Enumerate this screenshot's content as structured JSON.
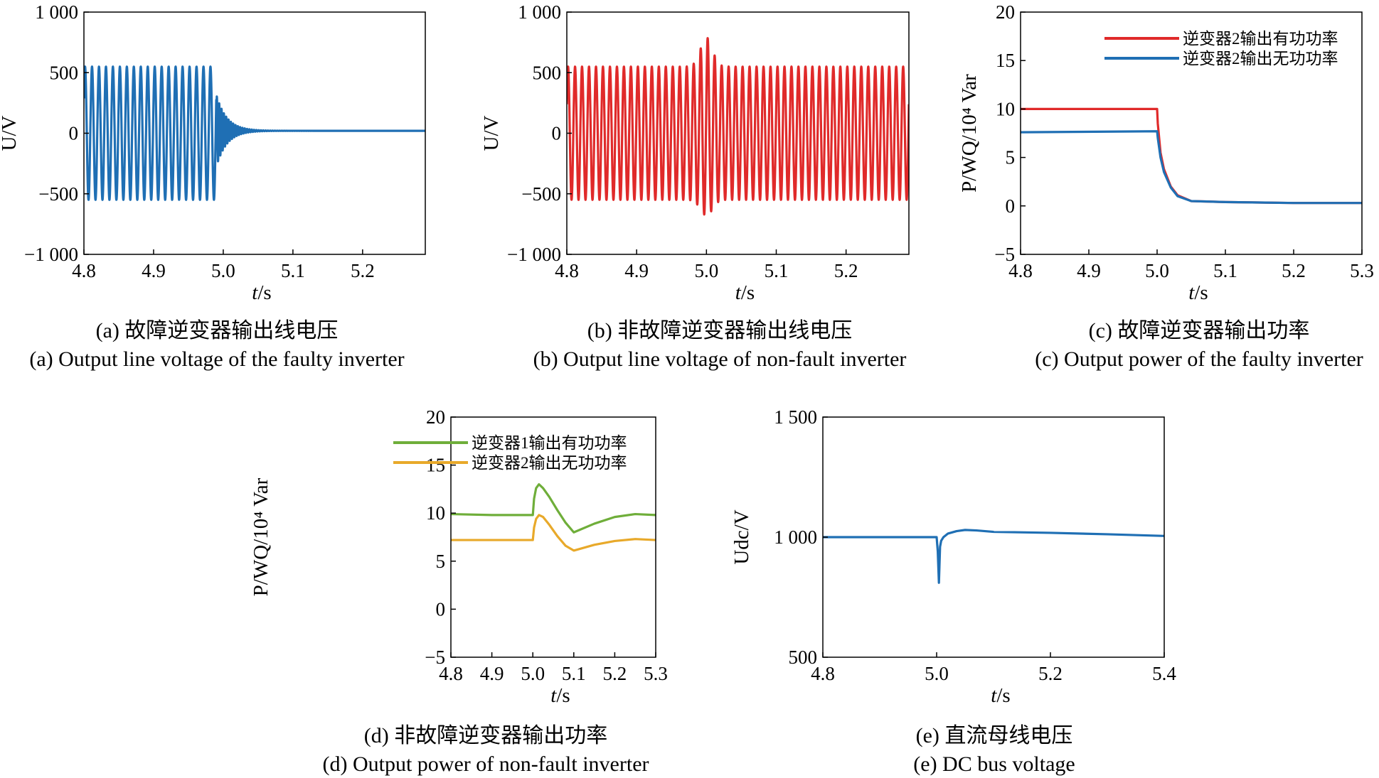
{
  "figure": {
    "panels": [
      {
        "id": "a",
        "caption_cn": "(a) 故障逆变器输出线电压",
        "caption_en": "(a) Output line voltage of the faulty inverter"
      },
      {
        "id": "b",
        "caption_cn": "(b) 非故障逆变器输出线电压",
        "caption_en": "(b) Output line voltage of non-fault inverter"
      },
      {
        "id": "c",
        "caption_cn": "(c) 故障逆变器输出功率",
        "caption_en": "(c) Output power of the faulty inverter"
      },
      {
        "id": "d",
        "caption_cn": "(d) 非故障逆变器输出功率",
        "caption_en": "(d) Output power of non-fault inverter"
      },
      {
        "id": "e",
        "caption_cn": "(e) 直流母线电压",
        "caption_en": "(e) DC bus voltage"
      }
    ]
  },
  "chart_data": [
    {
      "panel": "a",
      "type": "line",
      "xlabel_italic": "t",
      "xlabel_rest": "/s",
      "ylabel": "U/V",
      "xlim": [
        4.8,
        5.29
      ],
      "ylim": [
        -1000,
        1000
      ],
      "xticks": [
        4.8,
        4.9,
        5.0,
        5.1,
        5.2
      ],
      "xtick_labels": [
        "4.8",
        "4.9",
        "5.0",
        "5.1",
        "5.2"
      ],
      "yticks": [
        1000,
        500,
        0,
        -500,
        -1000
      ],
      "ytick_labels": [
        "1 000",
        "500",
        "0",
        "−500",
        "−1 000"
      ],
      "series": [
        {
          "color": "#1f6fb4",
          "signal": {
            "kind": "sine_fault_decay",
            "t_start": 4.8,
            "t_end": 5.29,
            "amplitude": 550,
            "frequency_hz": 100,
            "fault_time": 4.99,
            "after_fault_amplitude": 300,
            "decay_time_constant": 0.015,
            "after_fault_frequency_hz": 300,
            "steady_value": 20
          }
        }
      ]
    },
    {
      "panel": "b",
      "type": "line",
      "xlabel_italic": "t",
      "xlabel_rest": "/s",
      "ylabel": "U/V",
      "xlim": [
        4.8,
        5.29
      ],
      "ylim": [
        -1000,
        1000
      ],
      "xticks": [
        4.8,
        4.9,
        5.0,
        5.1,
        5.2
      ],
      "xtick_labels": [
        "4.8",
        "4.9",
        "5.0",
        "5.1",
        "5.2"
      ],
      "yticks": [
        1000,
        500,
        0,
        -500,
        -1000
      ],
      "ytick_labels": [
        "1 000",
        "500",
        "0",
        "−500",
        "−1 000"
      ],
      "series": [
        {
          "color": "#e02a2a",
          "signal": {
            "kind": "sine_with_spike",
            "t_start": 4.8,
            "t_end": 5.29,
            "amplitude": 550,
            "frequency_hz": 100,
            "spike_time": 5.0,
            "spike_peak": 790,
            "spike_trough": -680
          }
        }
      ]
    },
    {
      "panel": "c",
      "type": "line",
      "xlabel_italic": "t",
      "xlabel_rest": "/s",
      "ylabel": "P/WQ/10⁴ Var",
      "xlim": [
        4.8,
        5.3
      ],
      "ylim": [
        -5,
        20
      ],
      "xticks": [
        4.8,
        4.9,
        5.0,
        5.1,
        5.2,
        5.3
      ],
      "xtick_labels": [
        "4.8",
        "4.9",
        "5.0",
        "5.1",
        "5.2",
        "5.3"
      ],
      "yticks": [
        20,
        15,
        10,
        5,
        0,
        -5
      ],
      "ytick_labels": [
        "20",
        "15",
        "10",
        "5",
        "0",
        "−5"
      ],
      "legend": [
        "逆变器2输出有功功率",
        "逆变器2输出无功功率"
      ],
      "series": [
        {
          "name": "逆变器2输出有功功率",
          "color": "#e02a2a",
          "x": [
            4.8,
            5.0,
            5.001,
            5.005,
            5.01,
            5.02,
            5.03,
            5.05,
            5.1,
            5.2,
            5.3
          ],
          "y": [
            10.0,
            10.0,
            8.5,
            5.5,
            3.8,
            2.0,
            1.1,
            0.5,
            0.4,
            0.3,
            0.3
          ]
        },
        {
          "name": "逆变器2输出无功功率",
          "color": "#1f6fb4",
          "x": [
            4.8,
            5.0,
            5.001,
            5.005,
            5.01,
            5.02,
            5.03,
            5.05,
            5.1,
            5.2,
            5.3
          ],
          "y": [
            7.6,
            7.7,
            7.0,
            5.0,
            3.5,
            1.9,
            1.0,
            0.5,
            0.4,
            0.3,
            0.3
          ]
        }
      ]
    },
    {
      "panel": "d",
      "type": "line",
      "xlabel_italic": "t",
      "xlabel_rest": "/s",
      "ylabel": "P/WQ/10⁴ Var",
      "xlim": [
        4.8,
        5.3
      ],
      "ylim": [
        -5,
        20
      ],
      "xticks": [
        4.8,
        4.9,
        5.0,
        5.1,
        5.2,
        5.3
      ],
      "xtick_labels": [
        "4.8",
        "4.9",
        "5.0",
        "5.1",
        "5.2",
        "5.3"
      ],
      "yticks": [
        20,
        15,
        10,
        5,
        0,
        -5
      ],
      "ytick_labels": [
        "20",
        "15",
        "10",
        "5",
        "0",
        "−5"
      ],
      "legend": [
        "逆变器1输出有功功率",
        "逆变器2输出无功功率"
      ],
      "series": [
        {
          "name": "逆变器1输出有功功率",
          "color": "#6fae3a",
          "x": [
            4.8,
            4.9,
            5.0,
            5.003,
            5.008,
            5.015,
            5.025,
            5.04,
            5.06,
            5.08,
            5.1,
            5.15,
            5.2,
            5.25,
            5.3
          ],
          "y": [
            9.9,
            9.8,
            9.8,
            11.5,
            12.6,
            13.0,
            12.6,
            11.7,
            10.3,
            9.0,
            8.0,
            8.9,
            9.6,
            9.9,
            9.8
          ]
        },
        {
          "name": "逆变器2输出无功功率",
          "color": "#e8a92a",
          "x": [
            4.8,
            4.9,
            5.0,
            5.003,
            5.008,
            5.015,
            5.025,
            5.04,
            5.06,
            5.08,
            5.1,
            5.15,
            5.2,
            5.25,
            5.3
          ],
          "y": [
            7.2,
            7.2,
            7.2,
            8.5,
            9.4,
            9.8,
            9.6,
            8.8,
            7.6,
            6.6,
            6.1,
            6.7,
            7.1,
            7.3,
            7.2
          ]
        }
      ]
    },
    {
      "panel": "e",
      "type": "line",
      "xlabel_italic": "t",
      "xlabel_rest": "/s",
      "ylabel": "Udc/V",
      "xlim": [
        4.8,
        5.4
      ],
      "ylim": [
        500,
        1500
      ],
      "xticks": [
        4.8,
        5.0,
        5.2,
        5.4
      ],
      "xtick_labels": [
        "4.8",
        "5.0",
        "5.2",
        "5.4"
      ],
      "yticks": [
        1500,
        1000,
        500
      ],
      "ytick_labels": [
        "1 500",
        "1 000",
        "500"
      ],
      "series": [
        {
          "color": "#1f6fb4",
          "x": [
            4.8,
            4.9,
            5.0,
            5.002,
            5.004,
            5.006,
            5.008,
            5.012,
            5.02,
            5.035,
            5.05,
            5.07,
            5.1,
            5.2,
            5.3,
            5.4
          ],
          "y": [
            1000,
            1000,
            1000,
            940,
            810,
            960,
            985,
            1000,
            1015,
            1025,
            1030,
            1028,
            1022,
            1018,
            1012,
            1005
          ]
        }
      ]
    }
  ]
}
